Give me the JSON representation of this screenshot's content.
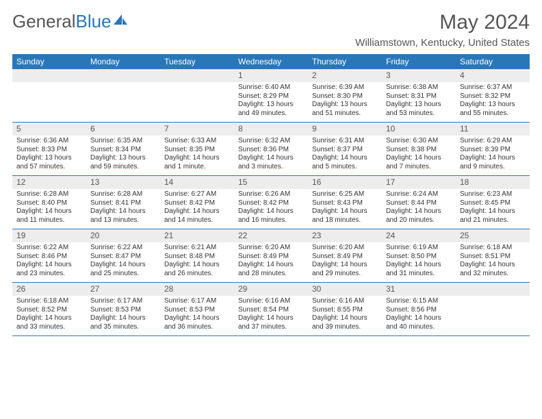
{
  "logo": {
    "text_gray": "General",
    "text_blue": "Blue"
  },
  "title": "May 2024",
  "location": "Williamstown, Kentucky, United States",
  "header_bg": "#2a77b8",
  "daynum_bg": "#ededed",
  "weekdays": [
    "Sunday",
    "Monday",
    "Tuesday",
    "Wednesday",
    "Thursday",
    "Friday",
    "Saturday"
  ],
  "weeks": [
    [
      {
        "n": "",
        "sr": "",
        "ss": "",
        "dl": ""
      },
      {
        "n": "",
        "sr": "",
        "ss": "",
        "dl": ""
      },
      {
        "n": "",
        "sr": "",
        "ss": "",
        "dl": ""
      },
      {
        "n": "1",
        "sr": "Sunrise: 6:40 AM",
        "ss": "Sunset: 8:29 PM",
        "dl": "Daylight: 13 hours and 49 minutes."
      },
      {
        "n": "2",
        "sr": "Sunrise: 6:39 AM",
        "ss": "Sunset: 8:30 PM",
        "dl": "Daylight: 13 hours and 51 minutes."
      },
      {
        "n": "3",
        "sr": "Sunrise: 6:38 AM",
        "ss": "Sunset: 8:31 PM",
        "dl": "Daylight: 13 hours and 53 minutes."
      },
      {
        "n": "4",
        "sr": "Sunrise: 6:37 AM",
        "ss": "Sunset: 8:32 PM",
        "dl": "Daylight: 13 hours and 55 minutes."
      }
    ],
    [
      {
        "n": "5",
        "sr": "Sunrise: 6:36 AM",
        "ss": "Sunset: 8:33 PM",
        "dl": "Daylight: 13 hours and 57 minutes."
      },
      {
        "n": "6",
        "sr": "Sunrise: 6:35 AM",
        "ss": "Sunset: 8:34 PM",
        "dl": "Daylight: 13 hours and 59 minutes."
      },
      {
        "n": "7",
        "sr": "Sunrise: 6:33 AM",
        "ss": "Sunset: 8:35 PM",
        "dl": "Daylight: 14 hours and 1 minute."
      },
      {
        "n": "8",
        "sr": "Sunrise: 6:32 AM",
        "ss": "Sunset: 8:36 PM",
        "dl": "Daylight: 14 hours and 3 minutes."
      },
      {
        "n": "9",
        "sr": "Sunrise: 6:31 AM",
        "ss": "Sunset: 8:37 PM",
        "dl": "Daylight: 14 hours and 5 minutes."
      },
      {
        "n": "10",
        "sr": "Sunrise: 6:30 AM",
        "ss": "Sunset: 8:38 PM",
        "dl": "Daylight: 14 hours and 7 minutes."
      },
      {
        "n": "11",
        "sr": "Sunrise: 6:29 AM",
        "ss": "Sunset: 8:39 PM",
        "dl": "Daylight: 14 hours and 9 minutes."
      }
    ],
    [
      {
        "n": "12",
        "sr": "Sunrise: 6:28 AM",
        "ss": "Sunset: 8:40 PM",
        "dl": "Daylight: 14 hours and 11 minutes."
      },
      {
        "n": "13",
        "sr": "Sunrise: 6:28 AM",
        "ss": "Sunset: 8:41 PM",
        "dl": "Daylight: 14 hours and 13 minutes."
      },
      {
        "n": "14",
        "sr": "Sunrise: 6:27 AM",
        "ss": "Sunset: 8:42 PM",
        "dl": "Daylight: 14 hours and 14 minutes."
      },
      {
        "n": "15",
        "sr": "Sunrise: 6:26 AM",
        "ss": "Sunset: 8:42 PM",
        "dl": "Daylight: 14 hours and 16 minutes."
      },
      {
        "n": "16",
        "sr": "Sunrise: 6:25 AM",
        "ss": "Sunset: 8:43 PM",
        "dl": "Daylight: 14 hours and 18 minutes."
      },
      {
        "n": "17",
        "sr": "Sunrise: 6:24 AM",
        "ss": "Sunset: 8:44 PM",
        "dl": "Daylight: 14 hours and 20 minutes."
      },
      {
        "n": "18",
        "sr": "Sunrise: 6:23 AM",
        "ss": "Sunset: 8:45 PM",
        "dl": "Daylight: 14 hours and 21 minutes."
      }
    ],
    [
      {
        "n": "19",
        "sr": "Sunrise: 6:22 AM",
        "ss": "Sunset: 8:46 PM",
        "dl": "Daylight: 14 hours and 23 minutes."
      },
      {
        "n": "20",
        "sr": "Sunrise: 6:22 AM",
        "ss": "Sunset: 8:47 PM",
        "dl": "Daylight: 14 hours and 25 minutes."
      },
      {
        "n": "21",
        "sr": "Sunrise: 6:21 AM",
        "ss": "Sunset: 8:48 PM",
        "dl": "Daylight: 14 hours and 26 minutes."
      },
      {
        "n": "22",
        "sr": "Sunrise: 6:20 AM",
        "ss": "Sunset: 8:49 PM",
        "dl": "Daylight: 14 hours and 28 minutes."
      },
      {
        "n": "23",
        "sr": "Sunrise: 6:20 AM",
        "ss": "Sunset: 8:49 PM",
        "dl": "Daylight: 14 hours and 29 minutes."
      },
      {
        "n": "24",
        "sr": "Sunrise: 6:19 AM",
        "ss": "Sunset: 8:50 PM",
        "dl": "Daylight: 14 hours and 31 minutes."
      },
      {
        "n": "25",
        "sr": "Sunrise: 6:18 AM",
        "ss": "Sunset: 8:51 PM",
        "dl": "Daylight: 14 hours and 32 minutes."
      }
    ],
    [
      {
        "n": "26",
        "sr": "Sunrise: 6:18 AM",
        "ss": "Sunset: 8:52 PM",
        "dl": "Daylight: 14 hours and 33 minutes."
      },
      {
        "n": "27",
        "sr": "Sunrise: 6:17 AM",
        "ss": "Sunset: 8:53 PM",
        "dl": "Daylight: 14 hours and 35 minutes."
      },
      {
        "n": "28",
        "sr": "Sunrise: 6:17 AM",
        "ss": "Sunset: 8:53 PM",
        "dl": "Daylight: 14 hours and 36 minutes."
      },
      {
        "n": "29",
        "sr": "Sunrise: 6:16 AM",
        "ss": "Sunset: 8:54 PM",
        "dl": "Daylight: 14 hours and 37 minutes."
      },
      {
        "n": "30",
        "sr": "Sunrise: 6:16 AM",
        "ss": "Sunset: 8:55 PM",
        "dl": "Daylight: 14 hours and 39 minutes."
      },
      {
        "n": "31",
        "sr": "Sunrise: 6:15 AM",
        "ss": "Sunset: 8:56 PM",
        "dl": "Daylight: 14 hours and 40 minutes."
      },
      {
        "n": "",
        "sr": "",
        "ss": "",
        "dl": ""
      }
    ]
  ]
}
